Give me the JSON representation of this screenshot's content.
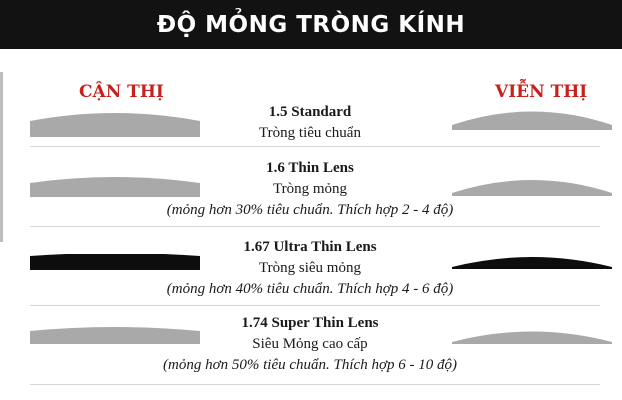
{
  "header": {
    "title": "ĐỘ MỎNG TRÒNG KÍNH",
    "background": "#121212"
  },
  "labels": {
    "left": "CẬN THỊ",
    "right": "VIỄN THỊ",
    "color": "#c8201c"
  },
  "lens_colors": {
    "gray": "#a9a9a9",
    "black": "#0d0d0d"
  },
  "rows": [
    {
      "title": "1.5 Standard",
      "subtitle": "Tròng tiêu chuẩn",
      "note": "",
      "lens_color": "gray"
    },
    {
      "title": "1.6 Thin Lens",
      "subtitle": "Tròng mỏng",
      "note": "(mỏng hơn 30% tiêu chuẩn. Thích hợp 2 - 4 độ)",
      "lens_color": "gray"
    },
    {
      "title": "1.67 Ultra Thin Lens",
      "subtitle": "Tròng siêu mỏng",
      "note": "(mỏng hơn 40% tiêu chuẩn. Thích hợp 4 - 6 độ)",
      "lens_color": "black"
    },
    {
      "title": "1.74 Super Thin Lens",
      "subtitle": "Siêu Mỏng cao cấp",
      "note": "(mỏng hơn 50% tiêu chuẩn. Thích hợp 6 - 10 độ)",
      "lens_color": "gray"
    }
  ]
}
